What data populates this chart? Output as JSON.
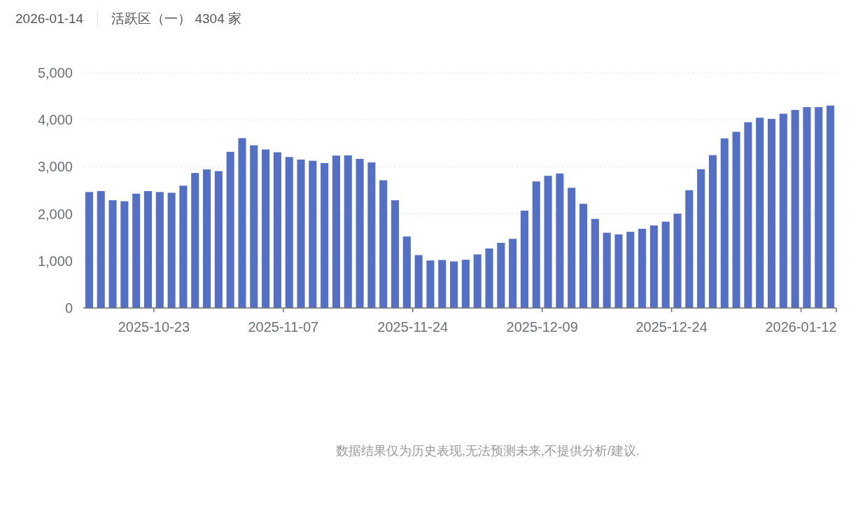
{
  "chart_data": {
    "type": "bar",
    "title": "2026-01-14",
    "subtitle": "活跃区（一） 4304 家",
    "categories": [
      null,
      null,
      null,
      null,
      null,
      null,
      "2025-10-23",
      null,
      null,
      null,
      null,
      null,
      null,
      null,
      null,
      null,
      null,
      "2025-11-07",
      null,
      null,
      null,
      null,
      null,
      null,
      null,
      null,
      null,
      null,
      "2025-11-24",
      null,
      null,
      null,
      null,
      null,
      null,
      null,
      null,
      null,
      null,
      "2025-12-09",
      null,
      null,
      null,
      null,
      null,
      null,
      null,
      null,
      null,
      null,
      "2025-12-24",
      null,
      null,
      null,
      null,
      null,
      null,
      null,
      null,
      null,
      null,
      "2026-01-12",
      null,
      null
    ],
    "values": [
      2465,
      2485,
      2290,
      2270,
      2430,
      2485,
      2465,
      2450,
      2600,
      2870,
      2945,
      2910,
      3320,
      3610,
      3460,
      3370,
      3310,
      3210,
      3155,
      3130,
      3080,
      3240,
      3245,
      3170,
      3095,
      2715,
      2290,
      1520,
      1125,
      1010,
      1020,
      990,
      1025,
      1140,
      1265,
      1385,
      1470,
      2070,
      2690,
      2810,
      2860,
      2555,
      2215,
      1895,
      1600,
      1565,
      1620,
      1685,
      1755,
      1835,
      2005,
      2505,
      2950,
      3250,
      3605,
      3745,
      3950,
      4045,
      4020,
      4130,
      4210,
      4270,
      4270,
      4304
    ],
    "color": "#5470c6",
    "ylim": [
      0,
      5000
    ],
    "yticks": [
      0,
      {
        "value": 1000,
        "label": "1,000"
      },
      {
        "value": 2000,
        "label": "2,000"
      },
      {
        "value": 3000,
        "label": "3,000"
      },
      {
        "value": 4000,
        "label": "4,000"
      },
      {
        "value": 5000,
        "label": "5,000"
      }
    ],
    "grid": "y",
    "annotations": [
      "数据结果仅为历史表现,无法预测未来,不提供分析/建议."
    ]
  }
}
